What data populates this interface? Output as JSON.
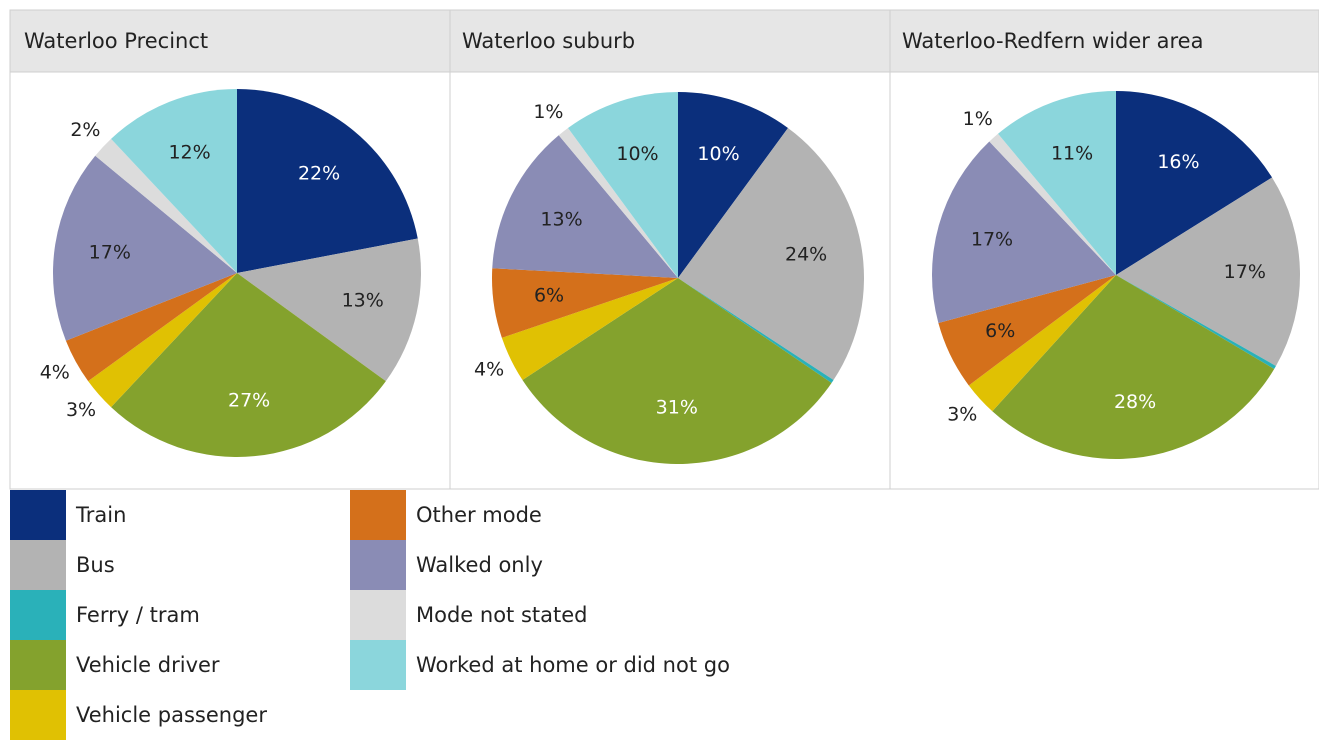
{
  "chart_data": [
    {
      "type": "pie",
      "title": "Waterloo Precinct",
      "values": [
        22,
        13,
        0,
        27,
        3,
        4,
        17,
        2,
        12
      ],
      "value_labels": [
        "22%",
        "13%",
        null,
        "27%",
        "3%",
        "4%",
        "17%",
        "2%",
        "12%"
      ]
    },
    {
      "type": "pie",
      "title": "Waterloo suburb",
      "values": [
        10,
        24,
        0.3,
        31,
        4,
        6,
        13,
        1,
        10
      ],
      "value_labels": [
        "10%",
        "24%",
        null,
        "31%",
        "4%",
        "6%",
        "13%",
        "1%",
        "10%"
      ]
    },
    {
      "type": "pie",
      "title": "Waterloo-Redfern wider area",
      "values": [
        16,
        17,
        0.3,
        28,
        3,
        6,
        17,
        1,
        11
      ],
      "value_labels": [
        "16%",
        "17%",
        null,
        "28%",
        "3%",
        "6%",
        "17%",
        "1%",
        "11%"
      ]
    }
  ],
  "legend": {
    "labels": [
      "Train",
      "Bus",
      "Ferry / tram",
      "Vehicle driver",
      "Vehicle passenger",
      "Other mode",
      "Walked only",
      "Mode not stated",
      "Worked at home or did not go"
    ],
    "colors": [
      "#0b2f7c",
      "#b3b3b3",
      "#2ab1b9",
      "#84a22d",
      "#e0c103",
      "#d4701b",
      "#8a8cb5",
      "#dcdcdc",
      "#8bd6dc"
    ]
  }
}
